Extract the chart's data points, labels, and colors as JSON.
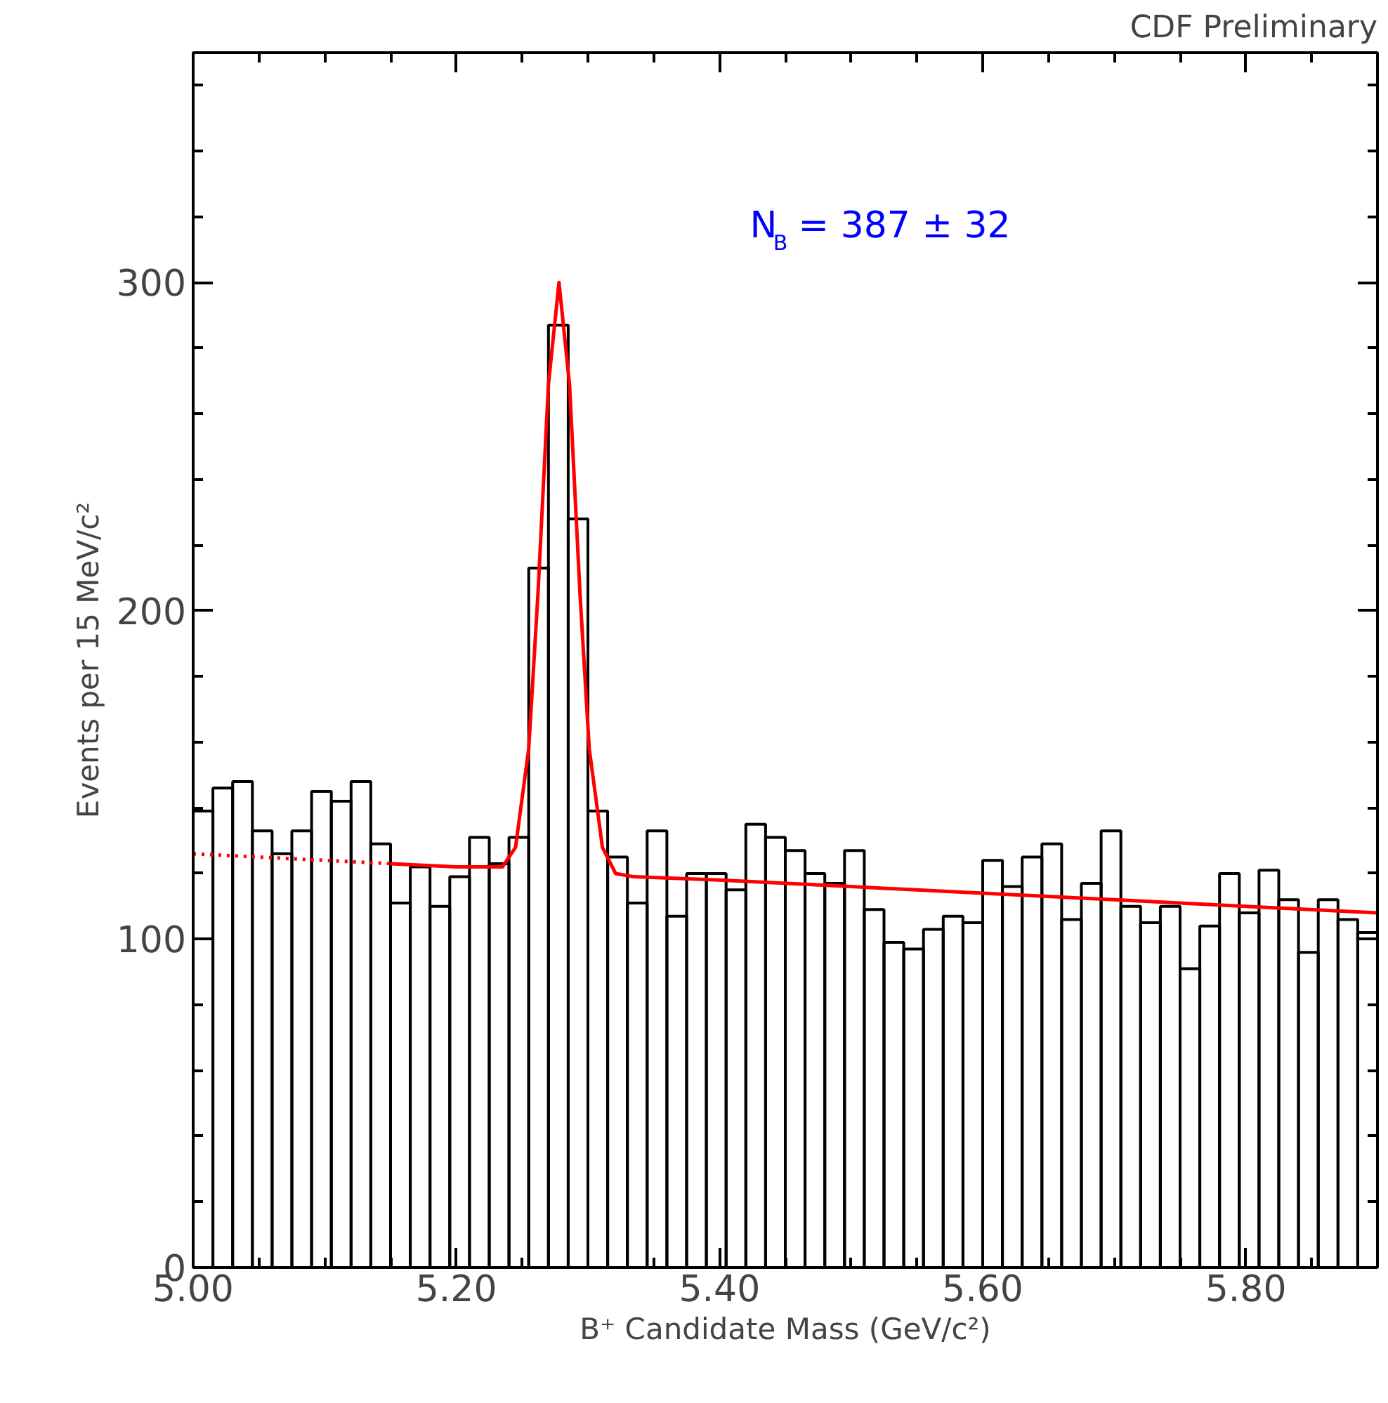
{
  "chart_data": {
    "type": "histogram",
    "title": "CDF Preliminary",
    "xlabel": "B⁺ Candidate Mass (GeV/c²)",
    "ylabel": "Events per 15 MeV/c²",
    "annotations": [
      "N$_{B}$ =  387 ± 32"
    ],
    "bins": [
      5.0,
      5.015,
      5.03,
      5.045,
      5.06,
      5.075,
      5.09,
      5.105,
      5.12,
      5.135,
      5.15,
      5.165,
      5.18,
      5.195,
      5.21,
      5.225,
      5.24,
      5.255,
      5.27,
      5.285,
      5.3,
      5.315,
      5.33,
      5.345,
      5.36,
      5.375,
      5.39,
      5.405,
      5.42,
      5.435,
      5.45,
      5.465,
      5.48,
      5.495,
      5.51,
      5.525,
      5.54,
      5.555,
      5.57,
      5.585,
      5.6,
      5.615,
      5.63,
      5.645,
      5.66,
      5.675,
      5.69,
      5.705,
      5.72,
      5.735,
      5.75,
      5.765,
      5.78,
      5.795,
      5.81,
      5.825,
      5.84,
      5.855,
      5.87,
      5.885,
      5.9
    ],
    "values": [
      139,
      146,
      148,
      133,
      126,
      133,
      145,
      142,
      148,
      129,
      111,
      122,
      110,
      119,
      131,
      123,
      131,
      213,
      287,
      228,
      139,
      125,
      111,
      133,
      107,
      120,
      120,
      115,
      135,
      131,
      127,
      120,
      117,
      127,
      109,
      99,
      97,
      103,
      107,
      105,
      124,
      116,
      125,
      129,
      106,
      117,
      133,
      110,
      105,
      110,
      91,
      104,
      120,
      108,
      121,
      112,
      96,
      112,
      106,
      102
    ],
    "color": "#000000",
    "series": [
      {
        "type": "line",
        "line_style": "dotted",
        "color": "#ff0000",
        "x": [
          5.0,
          5.15
        ],
        "values": [
          126,
          123
        ]
      },
      {
        "type": "line",
        "line_style": "solid",
        "color": "#ff0000",
        "x": [
          5.15,
          5.2,
          5.22,
          5.235,
          5.245,
          5.255,
          5.262,
          5.27,
          5.278,
          5.286,
          5.294,
          5.301,
          5.311,
          5.321,
          5.335,
          5.4,
          5.5,
          5.6,
          5.7,
          5.8,
          5.9
        ],
        "values": [
          123,
          122,
          122,
          122,
          128,
          158,
          205,
          269,
          300,
          269,
          205,
          158,
          128,
          120,
          119,
          118,
          116,
          114,
          112,
          110,
          108
        ]
      }
    ],
    "xlim": [
      5.0,
      5.9
    ],
    "ylim": [
      0,
      370
    ],
    "xticks": [
      {
        "value": 5.0,
        "label": "5.00"
      },
      {
        "value": 5.05,
        "label": null
      },
      {
        "value": 5.1,
        "label": null
      },
      {
        "value": 5.15,
        "label": null
      },
      {
        "value": 5.2,
        "label": "5.20"
      },
      {
        "value": 5.25,
        "label": null
      },
      {
        "value": 5.3,
        "label": null
      },
      {
        "value": 5.35,
        "label": null
      },
      {
        "value": 5.4,
        "label": "5.40"
      },
      {
        "value": 5.45,
        "label": null
      },
      {
        "value": 5.5,
        "label": null
      },
      {
        "value": 5.55,
        "label": null
      },
      {
        "value": 5.6,
        "label": "5.60"
      },
      {
        "value": 5.65,
        "label": null
      },
      {
        "value": 5.7,
        "label": null
      },
      {
        "value": 5.75,
        "label": null
      },
      {
        "value": 5.8,
        "label": "5.80"
      },
      {
        "value": 5.85,
        "label": null
      }
    ],
    "yticks": [
      0,
      {
        "value": 20,
        "label": null
      },
      {
        "value": 40,
        "label": null
      },
      {
        "value": 60,
        "label": null
      },
      {
        "value": 80,
        "label": null
      },
      100,
      {
        "value": 120,
        "label": null
      },
      {
        "value": 140,
        "label": null
      },
      {
        "value": 160,
        "label": null
      },
      {
        "value": 180,
        "label": null
      },
      200,
      {
        "value": 220,
        "label": null
      },
      {
        "value": 240,
        "label": null
      },
      {
        "value": 260,
        "label": null
      },
      {
        "value": 280,
        "label": null
      },
      300,
      {
        "value": 320,
        "label": null
      },
      {
        "value": 340,
        "label": null
      },
      {
        "value": 360,
        "label": null
      }
    ],
    "grid": false
  }
}
